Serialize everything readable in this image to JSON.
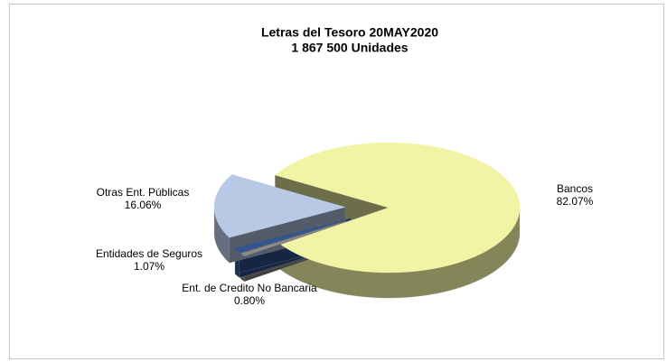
{
  "chart_data": {
    "type": "pie3d",
    "title": "Letras del Tesoro 20MAY2020",
    "subtitle": "1 867 500  Unidades",
    "categories": [
      "Bancos",
      "Ent. de Credito No Bancaria",
      "Entidades de Seguros",
      "Otras Ent. Públicas"
    ],
    "values": [
      82.07,
      0.8,
      1.07,
      16.06
    ],
    "value_labels": [
      "82.07%",
      "0.80%",
      "1.07%",
      "16.06%"
    ],
    "colors": [
      "#f0f4a4",
      "#8a8a8a",
      "#2e5597",
      "#b8c9e6"
    ]
  }
}
